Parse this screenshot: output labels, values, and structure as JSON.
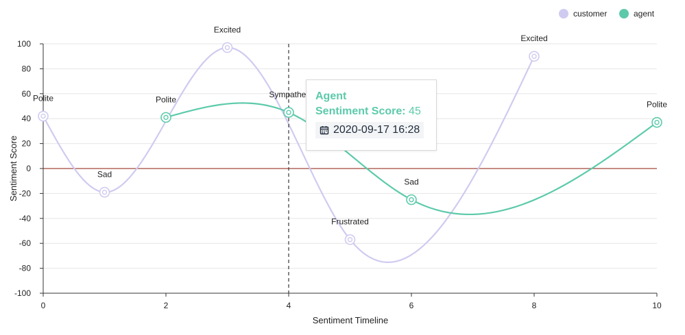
{
  "chart_data": {
    "type": "line",
    "title": "",
    "xlabel": "Sentiment Timeline",
    "ylabel": "Sentiment Score",
    "xlim": [
      0,
      10
    ],
    "ylim": [
      -100,
      100
    ],
    "x_ticks": [
      0,
      2,
      4,
      6,
      8,
      10
    ],
    "y_ticks": [
      -100,
      -80,
      -60,
      -40,
      -20,
      0,
      20,
      40,
      60,
      80,
      100
    ],
    "grid": true,
    "legend_position": "top-right",
    "zero_line_color": "#a0483c",
    "marker_line_x": 4,
    "series": [
      {
        "name": "customer",
        "color": "#cfcbf0",
        "points": [
          {
            "x": 0,
            "y": 42,
            "label": "Polite"
          },
          {
            "x": 1,
            "y": -19,
            "label": "Sad"
          },
          {
            "x": 3,
            "y": 97,
            "label": "Excited"
          },
          {
            "x": 5,
            "y": -57,
            "label": "Frustrated"
          },
          {
            "x": 8,
            "y": 90,
            "label": "Excited"
          }
        ]
      },
      {
        "name": "agent",
        "color": "#5ccaaa",
        "points": [
          {
            "x": 2,
            "y": 41,
            "label": "Polite"
          },
          {
            "x": 4,
            "y": 45,
            "label": "Sympathet"
          },
          {
            "x": 6,
            "y": -25,
            "label": "Sad"
          },
          {
            "x": 10,
            "y": 37,
            "label": "Polite"
          }
        ]
      }
    ]
  },
  "tooltip": {
    "series": "Agent",
    "score_label": "Sentiment Score:",
    "score_value": "45",
    "datetime": "2020-09-17 16:28",
    "icon": "calendar-icon"
  }
}
